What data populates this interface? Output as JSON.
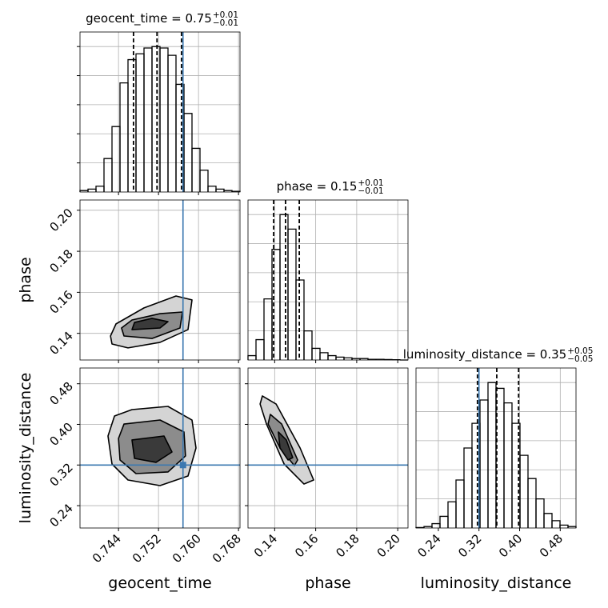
{
  "chart_data": {
    "type": "corner",
    "hist_ylim": [
      0,
      1.1
    ],
    "hist_yticks": [
      0.2,
      0.4,
      0.6,
      0.8,
      1.0
    ],
    "grid": true,
    "hist_color": "#000000",
    "truth_color": "#3b78b0",
    "contour_color": "#000000",
    "contour_fills": [
      "#d4d4d4",
      "#8c8c8c",
      "#3a3a3a"
    ],
    "parameters": [
      {
        "name": "geocent_time",
        "title": {
          "label": "geocent_time = 0.75",
          "upper": "+0.01",
          "lower": "−0.01"
        },
        "lim": [
          0.7363,
          0.7683
        ],
        "ticks": [
          0.744,
          0.752,
          {
            "value": 0.76,
            "label": "0.760"
          },
          0.768
        ],
        "bins": [
          0.7363,
          0.7379,
          0.7395,
          0.7411,
          0.7427,
          0.7443,
          0.7459,
          0.7475,
          0.7491,
          0.7507,
          0.7523,
          0.7539,
          0.7555,
          0.7571,
          0.7587,
          0.7603,
          0.7619,
          0.7635,
          0.7651,
          0.7667,
          0.7683
        ],
        "counts": [
          0.01,
          0.02,
          0.04,
          0.23,
          0.45,
          0.75,
          0.91,
          0.95,
          0.99,
          1.0,
          0.99,
          0.94,
          0.74,
          0.54,
          0.3,
          0.15,
          0.04,
          0.02,
          0.01,
          0.005
        ],
        "quantiles": [
          0.747,
          0.7517,
          0.7566
        ],
        "truth": 0.7569
      },
      {
        "name": "phase",
        "title": {
          "label": "phase = 0.15",
          "upper": "+0.01",
          "lower": "−0.01"
        },
        "lim": [
          0.127,
          0.205
        ],
        "ticks": [
          0.14,
          0.16,
          0.18,
          {
            "value": 0.2,
            "label": "0.20"
          }
        ],
        "bins": [
          0.127,
          0.1309,
          0.1348,
          0.1387,
          0.1426,
          0.1465,
          0.1504,
          0.1543,
          0.1582,
          0.1621,
          0.166,
          0.1699,
          0.1738,
          0.1777,
          0.1816,
          0.1855,
          0.1894,
          0.1933,
          0.1972,
          0.2011,
          0.205
        ],
        "counts": [
          0.03,
          0.14,
          0.42,
          0.76,
          1.0,
          0.9,
          0.55,
          0.2,
          0.08,
          0.05,
          0.03,
          0.02,
          0.015,
          0.01,
          0.01,
          0.005,
          0.005,
          0.003,
          0.002,
          0.0
        ],
        "quantiles": [
          0.1395,
          0.1453,
          0.152
        ]
      },
      {
        "name": "luminosity_distance",
        "title": {
          "label": "luminosity_distance = 0.35",
          "upper": "+0.05",
          "lower": "−0.05"
        },
        "lim": [
          0.196,
          0.511
        ],
        "ticks": [
          0.24,
          0.32,
          {
            "value": 0.4,
            "label": "0.40"
          },
          0.48
        ],
        "bins": [
          0.196,
          0.21175,
          0.2275,
          0.24325,
          0.259,
          0.27475,
          0.2905,
          0.30625,
          0.322,
          0.33775,
          0.3535,
          0.36925,
          0.385,
          0.40075,
          0.4165,
          0.43225,
          0.448,
          0.46375,
          0.4795,
          0.49525,
          0.511
        ],
        "counts": [
          0.003,
          0.01,
          0.03,
          0.08,
          0.18,
          0.33,
          0.55,
          0.72,
          0.88,
          1.0,
          0.96,
          0.86,
          0.72,
          0.5,
          0.34,
          0.2,
          0.1,
          0.05,
          0.02,
          0.01
        ],
        "quantiles": [
          0.317,
          0.355,
          0.398
        ],
        "truth": 0.32
      }
    ],
    "pairs": [
      {
        "x": 0,
        "y": 1,
        "contours": [
          {
            "x": [
              0.7427,
              0.7459,
              0.7523,
              0.7579,
              0.7587,
              0.7555,
              0.7491,
              0.7435,
              0.7424
            ],
            "y": [
              0.1348,
              0.1329,
              0.1356,
              0.1418,
              0.1563,
              0.1582,
              0.1524,
              0.1446,
              0.1387
            ]
          },
          {
            "x": [
              0.7451,
              0.7507,
              0.7563,
              0.7568,
              0.7523,
              0.7467,
              0.7446
            ],
            "y": [
              0.1387,
              0.1375,
              0.1426,
              0.1504,
              0.1496,
              0.1465,
              0.1426
            ]
          },
          {
            "x": [
              0.7467,
              0.7523,
              0.7539,
              0.7507,
              0.7472
            ],
            "y": [
              0.1418,
              0.1426,
              0.1457,
              0.1473,
              0.1453
            ]
          }
        ]
      },
      {
        "x": 0,
        "y": 2,
        "contours": [
          {
            "x": [
              0.7432,
              0.7467,
              0.7539,
              0.7587,
              0.7595,
              0.7579,
              0.7523,
              0.7459,
              0.7427,
              0.7419
            ],
            "y": [
              0.4165,
              0.4291,
              0.4354,
              0.4086,
              0.3535,
              0.2984,
              0.2795,
              0.2905,
              0.322,
              0.3771
            ]
          },
          {
            "x": [
              0.7451,
              0.7523,
              0.7571,
              0.7574,
              0.7539,
              0.7475,
              0.7443,
              0.744
            ],
            "y": [
              0.4007,
              0.4086,
              0.385,
              0.3378,
              0.3063,
              0.3031,
              0.3299,
              0.3724
            ]
          },
          {
            "x": [
              0.7467,
              0.7531,
              0.7547,
              0.7515,
              0.7472
            ],
            "y": [
              0.3693,
              0.3771,
              0.3456,
              0.3252,
              0.333
            ]
          }
        ]
      },
      {
        "x": 1,
        "y": 2,
        "contours": [
          {
            "x": [
              0.134,
              0.1407,
              0.1524,
              0.159,
              0.1543,
              0.1446,
              0.136,
              0.1329
            ],
            "y": [
              0.4559,
              0.4401,
              0.3535,
              0.2905,
              0.2826,
              0.322,
              0.4008,
              0.4401
            ]
          },
          {
            "x": [
              0.1379,
              0.1434,
              0.1512,
              0.1496,
              0.1426,
              0.1368
            ],
            "y": [
              0.4197,
              0.4008,
              0.3299,
              0.3189,
              0.3535,
              0.4008
            ]
          },
          {
            "x": [
              0.1418,
              0.1457,
              0.1488,
              0.1465,
              0.1426
            ],
            "y": [
              0.385,
              0.3693,
              0.3346,
              0.3299,
              0.3535
            ]
          }
        ]
      }
    ]
  }
}
